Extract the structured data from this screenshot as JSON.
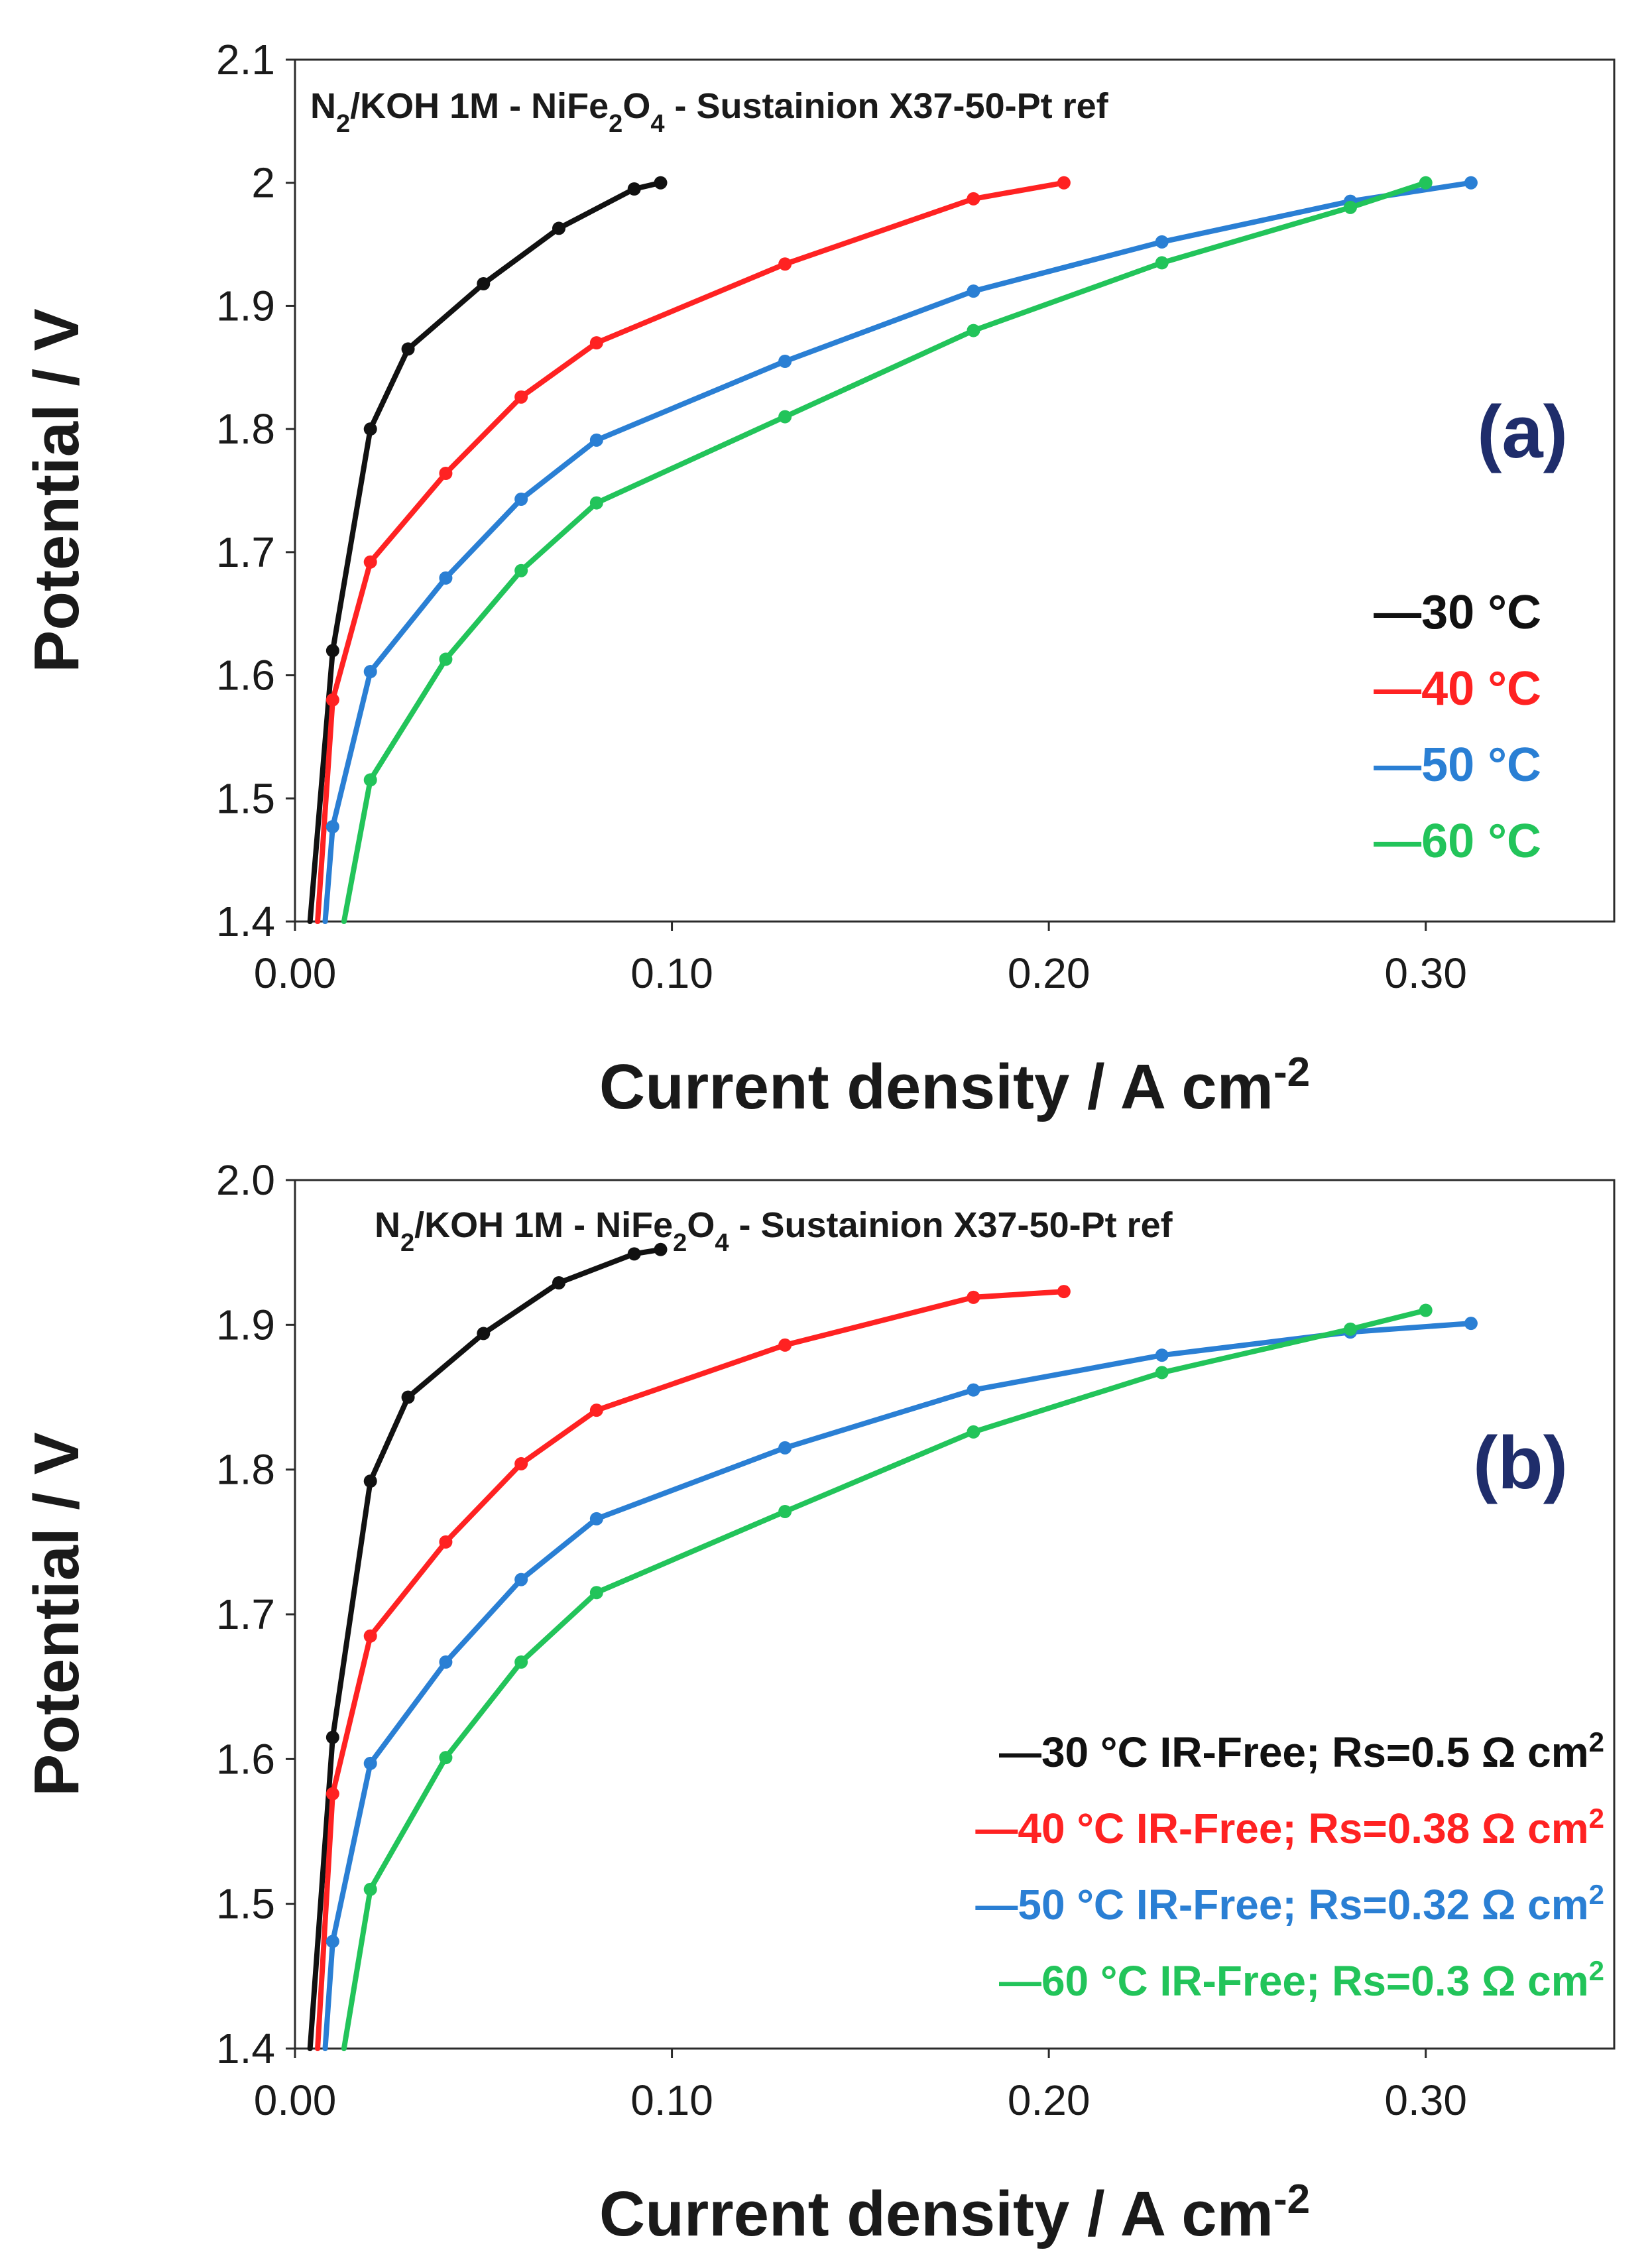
{
  "chart_data": [
    {
      "type": "line",
      "panel_label": "(a)",
      "title_parts": [
        "N",
        "2",
        "/KOH 1M - NiFe",
        "2",
        "O",
        "4",
        " - Sustainion X37-50-Pt ref"
      ],
      "xlabel_main": "Current density  / A cm",
      "xlabel_sup": "-2",
      "ylabel": "Potential / V",
      "xlim": [
        0,
        0.35
      ],
      "ylim": [
        1.4,
        2.1
      ],
      "xticks": [
        "0.00",
        "0.10",
        "0.20",
        "0.30"
      ],
      "xtick_values": [
        0,
        0.1,
        0.2,
        0.3
      ],
      "yticks": [
        "1.4",
        "1.5",
        "1.6",
        "1.7",
        "1.8",
        "1.9",
        "2",
        "2.1"
      ],
      "ytick_values": [
        1.4,
        1.5,
        1.6,
        1.7,
        1.8,
        1.9,
        2.0,
        2.1
      ],
      "legend_position": "right-middle",
      "series": [
        {
          "name": "—30 °C",
          "color": "#111111",
          "x": [
            0.004,
            0.01,
            0.02,
            0.03,
            0.05,
            0.07,
            0.09,
            0.097
          ],
          "y": [
            1.4,
            1.62,
            1.8,
            1.865,
            1.918,
            1.963,
            1.995,
            2.0
          ]
        },
        {
          "name": "—40 °C",
          "color": "#ff2222",
          "x": [
            0.006,
            0.01,
            0.02,
            0.04,
            0.06,
            0.08,
            0.13,
            0.18,
            0.204
          ],
          "y": [
            1.4,
            1.58,
            1.692,
            1.764,
            1.826,
            1.87,
            1.934,
            1.987,
            2.0
          ]
        },
        {
          "name": "—50 °C",
          "color": "#2a7fd4",
          "x": [
            0.008,
            0.01,
            0.02,
            0.04,
            0.06,
            0.08,
            0.13,
            0.18,
            0.23,
            0.28,
            0.312
          ],
          "y": [
            1.4,
            1.477,
            1.603,
            1.679,
            1.743,
            1.791,
            1.855,
            1.912,
            1.952,
            1.985,
            2.0
          ]
        },
        {
          "name": "—60 °C",
          "color": "#22c45a",
          "x": [
            0.013,
            0.02,
            0.04,
            0.06,
            0.08,
            0.13,
            0.18,
            0.23,
            0.28,
            0.3
          ],
          "y": [
            1.4,
            1.515,
            1.613,
            1.685,
            1.74,
            1.81,
            1.88,
            1.935,
            1.98,
            2.0
          ]
        }
      ]
    },
    {
      "type": "line",
      "panel_label": "(b)",
      "title_parts": [
        "N",
        "2",
        "/KOH 1M - NiFe",
        "2",
        "O",
        "4",
        " - Sustainion X37-50-Pt ref"
      ],
      "xlabel_main": "Current density  / A cm",
      "xlabel_sup": "-2",
      "ylabel": "Potential  / V",
      "xlim": [
        0,
        0.35
      ],
      "ylim": [
        1.4,
        2.0
      ],
      "xticks": [
        "0.00",
        "0.10",
        "0.20",
        "0.30"
      ],
      "xtick_values": [
        0,
        0.1,
        0.2,
        0.3
      ],
      "yticks": [
        "1.4",
        "1.5",
        "1.6",
        "1.7",
        "1.8",
        "1.9",
        "2.0"
      ],
      "ytick_values": [
        1.4,
        1.5,
        1.6,
        1.7,
        1.8,
        1.9,
        2.0
      ],
      "legend_position": "bottom-right",
      "series": [
        {
          "name": "—30 °C IR-Free; Rs=0.5 Ω cm",
          "sup": "2",
          "color": "#111111",
          "x": [
            0.004,
            0.01,
            0.02,
            0.03,
            0.05,
            0.07,
            0.09,
            0.097
          ],
          "y": [
            1.4,
            1.615,
            1.792,
            1.85,
            1.894,
            1.929,
            1.949,
            1.952
          ]
        },
        {
          "name": "—40 °C IR-Free; Rs=0.38 Ω cm",
          "sup": "2",
          "color": "#ff2222",
          "x": [
            0.006,
            0.01,
            0.02,
            0.04,
            0.06,
            0.08,
            0.13,
            0.18,
            0.204
          ],
          "y": [
            1.4,
            1.576,
            1.685,
            1.75,
            1.804,
            1.841,
            1.886,
            1.919,
            1.923
          ]
        },
        {
          "name": "—50 °C IR-Free; Rs=0.32 Ω cm",
          "sup": "2",
          "color": "#2a7fd4",
          "x": [
            0.008,
            0.01,
            0.02,
            0.04,
            0.06,
            0.08,
            0.13,
            0.18,
            0.23,
            0.28,
            0.312
          ],
          "y": [
            1.4,
            1.474,
            1.597,
            1.667,
            1.724,
            1.766,
            1.815,
            1.855,
            1.879,
            1.895,
            1.901
          ]
        },
        {
          "name": "—60 °C IR-Free; Rs=0.3 Ω cm",
          "sup": "2",
          "color": "#22c45a",
          "x": [
            0.013,
            0.02,
            0.04,
            0.06,
            0.08,
            0.13,
            0.18,
            0.23,
            0.28,
            0.3
          ],
          "y": [
            1.4,
            1.51,
            1.601,
            1.667,
            1.715,
            1.771,
            1.826,
            1.867,
            1.897,
            1.91
          ]
        }
      ]
    }
  ],
  "style": {
    "panel_label_color": "#1f2d6b",
    "frame_color": "#2b2b2b"
  }
}
